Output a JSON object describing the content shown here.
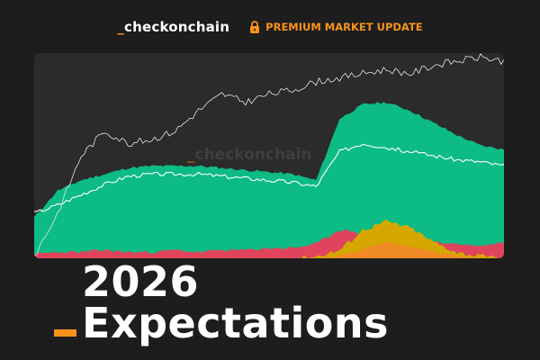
{
  "header": {
    "brand_prefix": "_",
    "brand_name": "checkonchain",
    "premium_label": "PREMIUM MARKET UPDATE"
  },
  "watermark": {
    "prefix": "_",
    "text": "checkonchain"
  },
  "headline": {
    "text": "2026 Expectations"
  },
  "colors": {
    "background": "#1d1d1d",
    "card": "#2b2b2b",
    "accent": "#f7931a",
    "green_area": "#0dbb84",
    "red_area": "#e0445c",
    "yellow_area": "#d4a800",
    "orange_area": "#f08a24",
    "price_line": "#e6e6e6"
  },
  "icons": {
    "lock": "lock-icon"
  },
  "chart_data": {
    "type": "area",
    "grid": false,
    "legend": "none",
    "x": [
      0,
      1,
      2,
      3,
      4,
      5,
      6,
      7,
      8,
      9,
      10,
      11,
      12,
      13,
      14,
      15,
      16,
      17,
      18,
      19,
      20
    ],
    "series": [
      {
        "values": [
          20,
          33,
          38,
          41,
          44,
          45,
          45,
          45,
          44,
          43,
          42,
          41,
          38,
          68,
          75,
          76,
          72,
          66,
          60,
          55,
          53
        ]
      },
      {
        "values": [
          22,
          26,
          31,
          36,
          40,
          41,
          41,
          41,
          40,
          39,
          38,
          37,
          35,
          52,
          56,
          54,
          52,
          50,
          48,
          47,
          45
        ]
      },
      {
        "values": [
          2,
          3,
          3,
          4,
          3,
          3,
          4,
          3,
          4,
          4,
          5,
          5,
          7,
          14,
          12,
          10,
          9,
          8,
          7,
          6,
          8
        ]
      },
      {
        "values": [
          0,
          0,
          0,
          0,
          0,
          0,
          0,
          0,
          0,
          0,
          0,
          0,
          1,
          4,
          14,
          18,
          15,
          8,
          3,
          1,
          0
        ]
      },
      {
        "values": [
          0,
          0,
          0,
          0,
          0,
          0,
          0,
          0,
          0,
          0,
          0,
          0,
          0,
          1,
          4,
          8,
          6,
          3,
          1,
          0,
          0
        ]
      },
      {
        "values": [
          1,
          22,
          50,
          62,
          56,
          58,
          62,
          72,
          80,
          76,
          80,
          82,
          86,
          88,
          90,
          92,
          90,
          94,
          96,
          98,
          96
        ]
      }
    ]
  }
}
